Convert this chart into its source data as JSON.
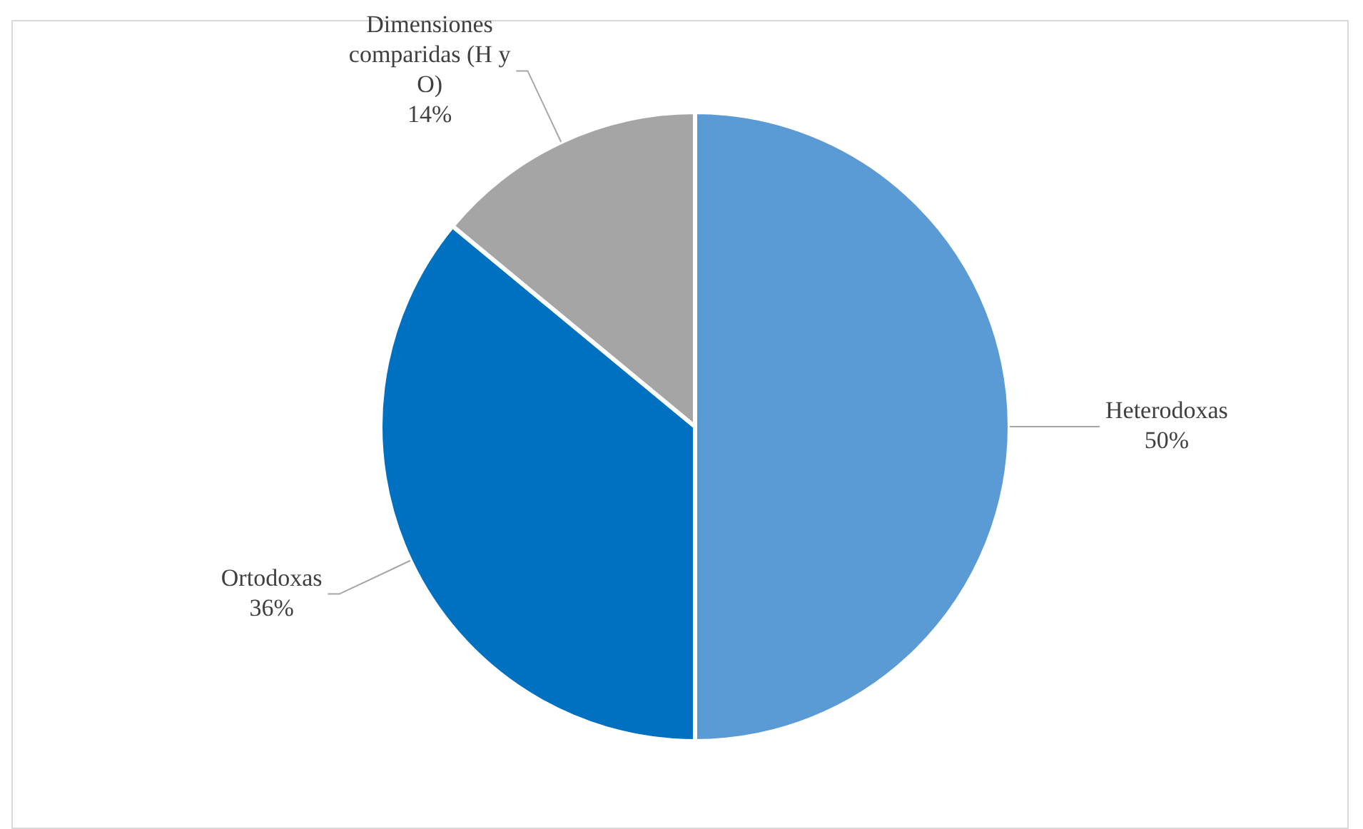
{
  "chart_data": {
    "type": "pie",
    "categories": [
      "Heterodoxas",
      "Ortodoxas",
      "Dimensiones comparidas (H y O)"
    ],
    "values": [
      50,
      36,
      14
    ],
    "colors": [
      "#5b9bd5",
      "#0070c0",
      "#a5a5a5"
    ],
    "value_labels": [
      "50%",
      "36%",
      "14%"
    ],
    "legend": false
  }
}
